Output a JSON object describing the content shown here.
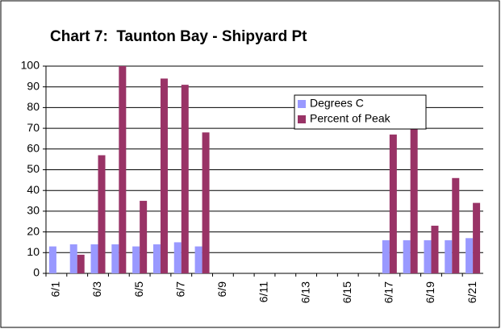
{
  "chart_data": {
    "type": "bar",
    "title": "Chart 7:  Taunton Bay - Shipyard Pt",
    "categories": [
      "6/1",
      null,
      "6/3",
      null,
      "6/5",
      null,
      "6/7",
      null,
      "6/9",
      null,
      "6/11",
      null,
      "6/13",
      null,
      "6/15",
      null,
      "6/17",
      null,
      "6/19",
      null,
      "6/21"
    ],
    "series": [
      {
        "name": "Degrees C",
        "color": "#9999ff",
        "values": [
          13,
          14,
          14,
          14,
          13,
          14,
          15,
          13,
          null,
          null,
          null,
          null,
          null,
          null,
          null,
          null,
          16,
          16,
          16,
          16,
          17
        ]
      },
      {
        "name": "Percent of Peak",
        "color": "#993366",
        "values": [
          null,
          9,
          57,
          100,
          35,
          94,
          91,
          68,
          null,
          null,
          null,
          null,
          null,
          null,
          null,
          null,
          67,
          86,
          23,
          46,
          34
        ]
      }
    ],
    "ylim": [
      0,
      100
    ],
    "yticks": [
      0,
      10,
      20,
      30,
      40,
      50,
      60,
      70,
      80,
      90,
      100
    ],
    "grid": true,
    "legend": "upper-right"
  }
}
